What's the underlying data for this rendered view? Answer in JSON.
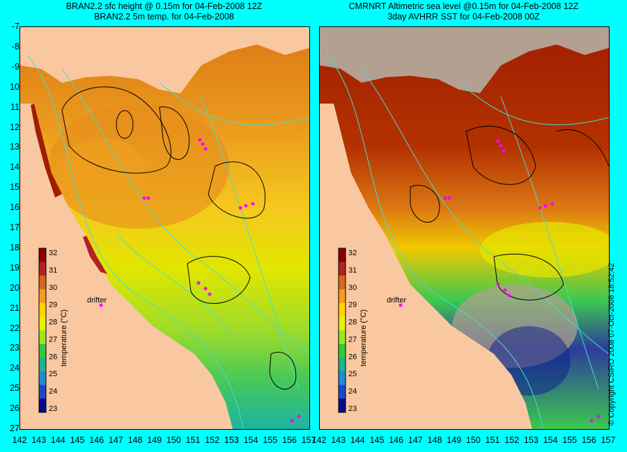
{
  "titles": {
    "left_line1": "BRAN2.2 sfc height @ 0.15m for 04-Feb-2008 12Z",
    "left_line2": "BRAN2.2 5m temp. for 04-Feb-2008",
    "right_line1": "CMRNRT Altimetric sea level  @0.15m  for 04-Feb-2008 12Z",
    "right_line2": "3day AVHRR SST for 04-Feb-2008 00Z"
  },
  "lat_labels": [
    "-7",
    "-8",
    "-9",
    "10",
    "11",
    "12",
    "13",
    "14",
    "15",
    "16",
    "17",
    "18",
    "19",
    "20",
    "21",
    "22",
    "23",
    "24",
    "25",
    "26",
    "27"
  ],
  "lon_labels": [
    "142",
    "143",
    "144",
    "145",
    "146",
    "147",
    "148",
    "149",
    "150",
    "151",
    "152",
    "153",
    "154",
    "155",
    "156",
    "157"
  ],
  "colorbar": {
    "ticks": [
      "32",
      "31",
      "30",
      "29",
      "28",
      "27",
      "26",
      "25",
      "24",
      "23"
    ],
    "label": "temperature (°C)",
    "colors": [
      "#8b0000",
      "#b22222",
      "#d2691e",
      "#f59b1e",
      "#ffd200",
      "#e6f000",
      "#9be61e",
      "#37c83c",
      "#1eb48c",
      "#1e8cd2",
      "#1e46c8",
      "#0a0a8c"
    ]
  },
  "drifter_label": "drifter",
  "copyright": "© Copyright CSIRO 2008   07-Oct-2008 18:52:42",
  "map_colors": {
    "land": "#fac8a0",
    "land_gray": "#b4a090",
    "contour": "#40e0d0",
    "warm_dark": "#a01e00",
    "warm": "#dc6e14",
    "mid": "#f0b400",
    "cool": "#dce600",
    "green": "#3cc850",
    "blue": "#0a1e8c",
    "drifter": "#ff00ff"
  }
}
